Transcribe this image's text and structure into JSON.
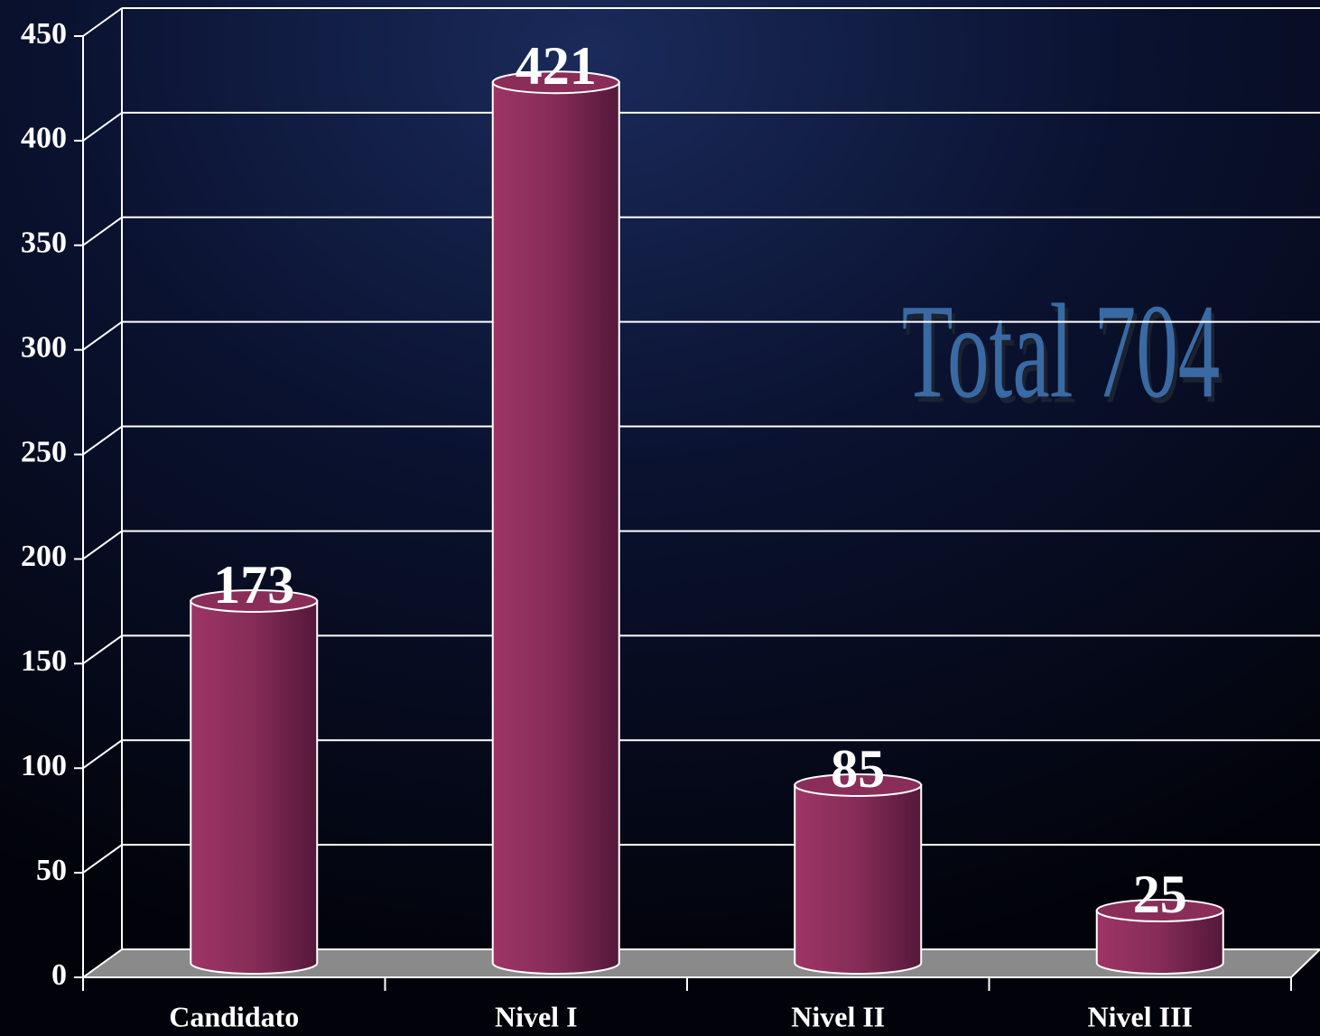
{
  "chart_data": {
    "type": "bar3d",
    "categories": [
      "Candidato",
      "Nivel I",
      "Nivel II",
      "Nivel III"
    ],
    "values": [
      173,
      421,
      85,
      25
    ],
    "color": "#8e2f5c",
    "ylim": [
      0,
      450
    ],
    "yticks": [
      0,
      50,
      100,
      150,
      200,
      250,
      300,
      350,
      400,
      450
    ],
    "grid": true,
    "annotation": "Total 704"
  }
}
